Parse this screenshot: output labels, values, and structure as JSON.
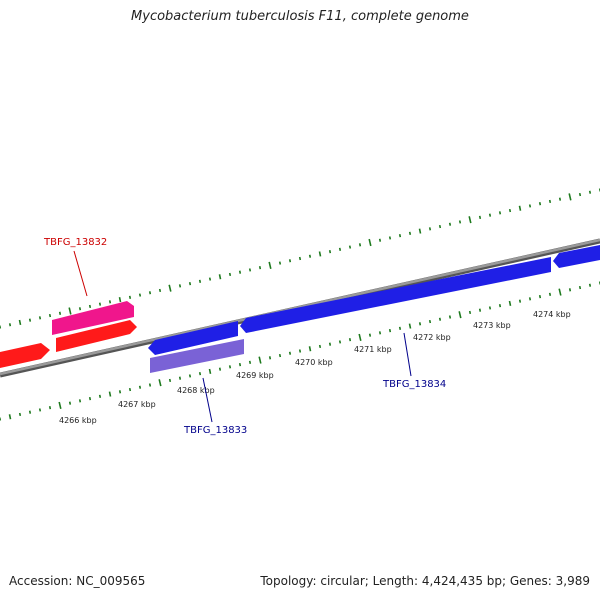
{
  "title": "Mycobacterium tuberculosis F11, complete genome",
  "footer": {
    "accession": "Accession: NC_009565",
    "summary": "Topology: circular; Length: 4,424,435 bp; Genes: 3,989"
  },
  "colors": {
    "backbone": "#8a8a8a",
    "ticks": "#1e7a1e",
    "forward_cds": "#ff1a1a",
    "forward_gene": "#f0168c",
    "reverse_cds": "#1f1fe6",
    "reverse_gene": "#7a62d6",
    "label_forward": "#cc0000",
    "label_reverse": "#00008b"
  },
  "ruler": {
    "tick_labels": [
      "4266 kbp",
      "4267 kbp",
      "4268 kbp",
      "4269 kbp",
      "4270 kbp",
      "4271 kbp",
      "4272 kbp",
      "4273 kbp",
      "4274 kbp"
    ]
  },
  "gene_labels": [
    {
      "name": "TBFG_13832",
      "strand": "forward"
    },
    {
      "name": "TBFG_13833",
      "strand": "reverse"
    },
    {
      "name": "TBFG_13834",
      "strand": "reverse"
    }
  ]
}
